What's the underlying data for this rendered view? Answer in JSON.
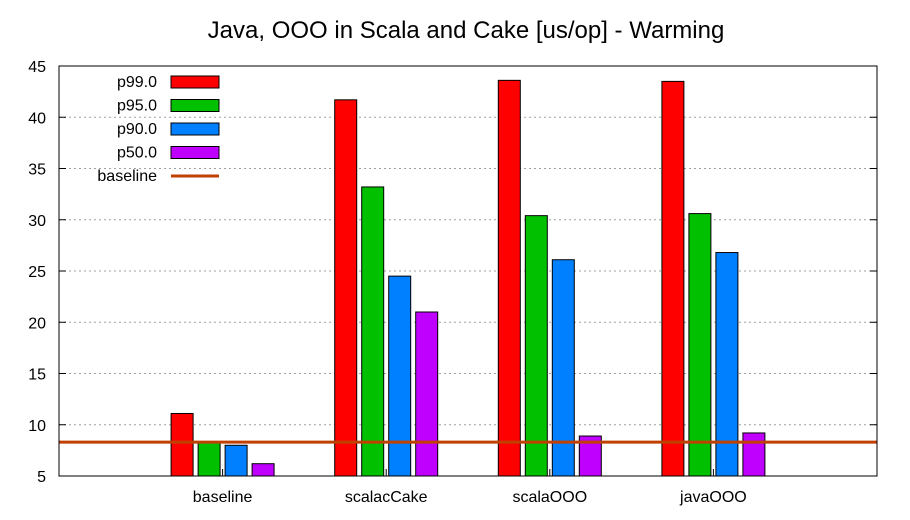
{
  "chart_data": {
    "type": "bar",
    "title": "Java, OOO in Scala and Cake [us/op] - Warming",
    "xlabel": "",
    "ylabel": "",
    "ylim": [
      5,
      45
    ],
    "yticks": [
      5,
      10,
      15,
      20,
      25,
      30,
      35,
      40,
      45
    ],
    "grid": true,
    "legend_position": "top-left",
    "categories": [
      "baseline",
      "scalacCake",
      "scalaOOO",
      "javaOOO"
    ],
    "series": [
      {
        "name": "p99.0",
        "color": "#ff0000",
        "values": [
          11.1,
          41.7,
          43.6,
          43.5
        ]
      },
      {
        "name": "p95.0",
        "color": "#00c000",
        "values": [
          8.3,
          33.2,
          30.4,
          30.6
        ]
      },
      {
        "name": "p90.0",
        "color": "#0080ff",
        "values": [
          8.0,
          24.5,
          26.1,
          26.8
        ]
      },
      {
        "name": "p50.0",
        "color": "#c000ff",
        "values": [
          6.2,
          21.0,
          8.9,
          9.2
        ]
      }
    ],
    "reference_line": {
      "name": "baseline",
      "color": "#c04000",
      "value": 8.3
    }
  }
}
